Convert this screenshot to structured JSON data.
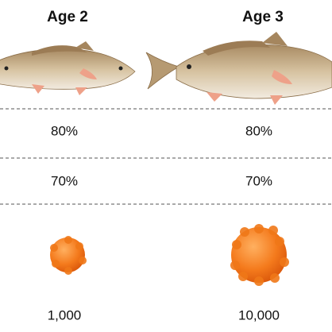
{
  "columns": [
    {
      "title": "Age 2",
      "first_value": "80%",
      "second_value": "70%",
      "eggs": "1,000"
    },
    {
      "title": "Age 3",
      "first_value": "80%",
      "second_value": "70%",
      "eggs": "10,000"
    }
  ]
}
